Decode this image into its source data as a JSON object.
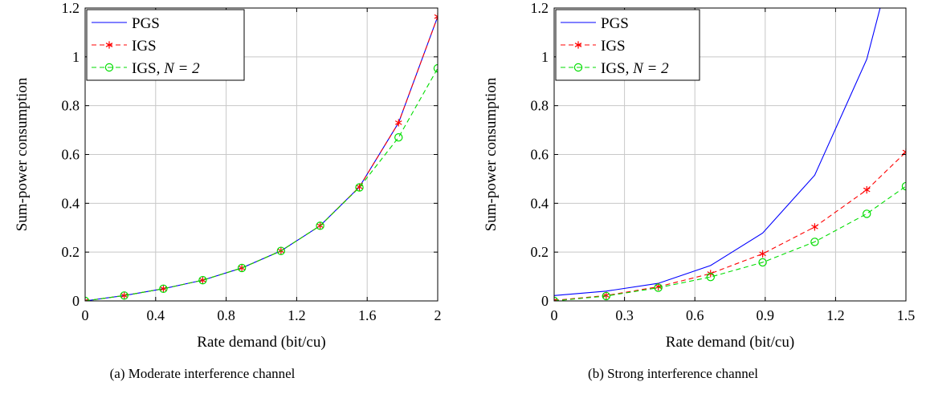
{
  "chart_data": [
    {
      "type": "line",
      "caption": "(a) Moderate interference channel",
      "xlabel": "Rate demand (bit/cu)",
      "ylabel": "Sum-power consumption",
      "xlim": [
        0,
        2
      ],
      "ylim": [
        0,
        1.2
      ],
      "xticks": [
        "0",
        "0.4",
        "0.8",
        "1.2",
        "1.6",
        "2"
      ],
      "xtick_values": [
        0,
        0.4,
        0.8,
        1.2,
        1.6,
        2
      ],
      "yticks": [
        "0",
        "0.2",
        "0.4",
        "0.6",
        "0.8",
        "1",
        "1.2"
      ],
      "ytick_values": [
        0,
        0.2,
        0.4,
        0.6,
        0.8,
        1.0,
        1.2
      ],
      "grid": true,
      "legend_position": "top-left",
      "series": [
        {
          "name": "PGS",
          "name_math": "",
          "color": "#0000ff",
          "dash": "solid",
          "marker": "none",
          "x": [
            0,
            0.222,
            0.444,
            0.667,
            0.889,
            1.111,
            1.333,
            1.556,
            1.778,
            2.0
          ],
          "y": [
            0.0,
            0.022,
            0.05,
            0.085,
            0.135,
            0.205,
            0.308,
            0.467,
            0.73,
            1.165
          ]
        },
        {
          "name": "IGS",
          "name_math": "",
          "color": "#ff0000",
          "dash": "dashed",
          "marker": "asterisk",
          "x": [
            0,
            0.222,
            0.444,
            0.667,
            0.889,
            1.111,
            1.333,
            1.556,
            1.778,
            2.0
          ],
          "y": [
            0.0,
            0.022,
            0.05,
            0.085,
            0.135,
            0.205,
            0.308,
            0.467,
            0.73,
            1.165
          ]
        },
        {
          "name": "IGS, ",
          "name_math": "N = 2",
          "color": "#00dd00",
          "dash": "dashed",
          "marker": "circle",
          "x": [
            0,
            0.222,
            0.444,
            0.667,
            0.889,
            1.111,
            1.333,
            1.556,
            1.778,
            2.0
          ],
          "y": [
            0.0,
            0.022,
            0.05,
            0.085,
            0.135,
            0.205,
            0.308,
            0.465,
            0.67,
            0.953
          ]
        }
      ]
    },
    {
      "type": "line",
      "caption": "(b) Strong interference channel",
      "xlabel": "Rate demand (bit/cu)",
      "ylabel": "Sum-power consumption",
      "xlim": [
        0,
        1.5
      ],
      "ylim": [
        0,
        1.2
      ],
      "xticks": [
        "0",
        "0.3",
        "0.6",
        "0.9",
        "1.2",
        "1.5"
      ],
      "xtick_values": [
        0,
        0.3,
        0.6,
        0.9,
        1.2,
        1.5
      ],
      "yticks": [
        "0",
        "0.2",
        "0.4",
        "0.6",
        "0.8",
        "1",
        "1.2"
      ],
      "ytick_values": [
        0,
        0.2,
        0.4,
        0.6,
        0.8,
        1.0,
        1.2
      ],
      "grid": true,
      "legend_position": "top-left",
      "series": [
        {
          "name": "PGS",
          "name_math": "",
          "color": "#0000ff",
          "dash": "solid",
          "marker": "none",
          "x": [
            0,
            0.222,
            0.444,
            0.667,
            0.889,
            1.111,
            1.333,
            1.39
          ],
          "y": [
            0.022,
            0.04,
            0.072,
            0.145,
            0.278,
            0.515,
            0.99,
            1.2
          ]
        },
        {
          "name": "IGS",
          "name_math": "",
          "color": "#ff0000",
          "dash": "dashed",
          "marker": "asterisk",
          "x": [
            0,
            0.222,
            0.444,
            0.667,
            0.889,
            1.111,
            1.333,
            1.5
          ],
          "y": [
            0.002,
            0.022,
            0.058,
            0.112,
            0.193,
            0.303,
            0.455,
            0.61
          ]
        },
        {
          "name": "IGS, ",
          "name_math": "N = 2",
          "color": "#00dd00",
          "dash": "dashed",
          "marker": "circle",
          "x": [
            0,
            0.222,
            0.444,
            0.667,
            0.889,
            1.111,
            1.333,
            1.5
          ],
          "y": [
            0.0,
            0.02,
            0.054,
            0.098,
            0.158,
            0.242,
            0.357,
            0.47
          ]
        }
      ]
    }
  ]
}
